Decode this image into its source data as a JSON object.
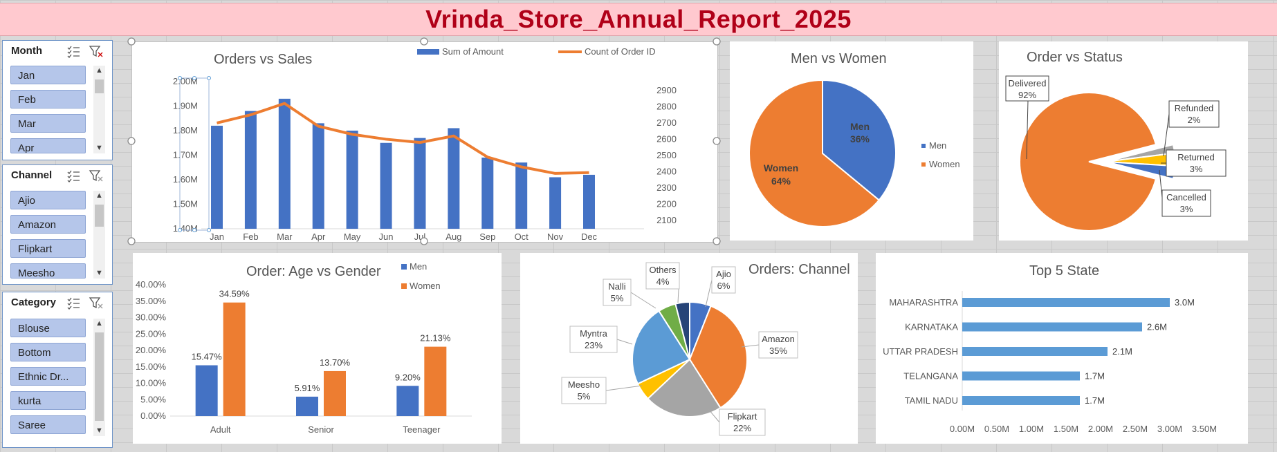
{
  "report_title": "Vrinda_Store_Annual_Report_2025",
  "colors": {
    "men": "#4472c4",
    "women": "#ed7d31",
    "bar": "#5b9bd5",
    "title": "#b00018"
  },
  "slicers": {
    "month": {
      "title": "Month",
      "items": [
        "Jan",
        "Feb",
        "Mar",
        "Apr"
      ]
    },
    "channel": {
      "title": "Channel",
      "items": [
        "Ajio",
        "Amazon",
        "Flipkart",
        "Meesho"
      ]
    },
    "category": {
      "title": "Category",
      "items": [
        "Blouse",
        "Bottom",
        "Ethnic Dr...",
        "kurta",
        "Saree"
      ]
    }
  },
  "chart_data": [
    {
      "type": "bar+line",
      "title": "Orders vs Sales",
      "categories": [
        "Jan",
        "Feb",
        "Mar",
        "Apr",
        "May",
        "Jun",
        "Jul",
        "Aug",
        "Sep",
        "Oct",
        "Nov",
        "Dec"
      ],
      "series": [
        {
          "name": "Sum of Amount",
          "type": "bar",
          "values": [
            1.82,
            1.88,
            1.93,
            1.83,
            1.8,
            1.75,
            1.77,
            1.81,
            1.69,
            1.67,
            1.61,
            1.62
          ]
        },
        {
          "name": "Count of Order ID",
          "type": "line",
          "values": [
            2700,
            2750,
            2820,
            2680,
            2630,
            2600,
            2580,
            2620,
            2490,
            2430,
            2390,
            2395
          ]
        }
      ],
      "y_ticks": [
        "1.40M",
        "1.50M",
        "1.60M",
        "1.70M",
        "1.80M",
        "1.90M",
        "2.00M"
      ],
      "y2_ticks": [
        "2100",
        "2200",
        "2300",
        "2400",
        "2500",
        "2600",
        "2700",
        "2800",
        "2900"
      ],
      "ylim": [
        1.4,
        2.0
      ],
      "y2lim": [
        2050,
        2950
      ]
    },
    {
      "type": "pie",
      "title": "Men vs Women",
      "labels": [
        "Men",
        "Women"
      ],
      "values": [
        36,
        64
      ],
      "data_labels": [
        "36%",
        "64%"
      ],
      "legend": [
        "Men",
        "Women"
      ]
    },
    {
      "type": "pie",
      "title": "Order vs Status",
      "labels": [
        "Delivered",
        "Refunded",
        "Returned",
        "Cancelled"
      ],
      "values": [
        92,
        2,
        3,
        3
      ],
      "data_labels": [
        "92%",
        "2%",
        "3%",
        "3%"
      ]
    },
    {
      "type": "bar",
      "title": "Order: Age vs Gender",
      "categories": [
        "Adult",
        "Senior",
        "Teenager"
      ],
      "series": [
        {
          "name": "Men",
          "values": [
            15.47,
            5.91,
            9.2
          ]
        },
        {
          "name": "Women",
          "values": [
            34.59,
            13.7,
            21.13
          ]
        }
      ],
      "data_labels": [
        [
          "15.47%",
          "5.91%",
          "9.20%"
        ],
        [
          "34.59%",
          "13.70%",
          "21.13%"
        ]
      ],
      "y_ticks": [
        "0.00%",
        "5.00%",
        "10.00%",
        "15.00%",
        "20.00%",
        "25.00%",
        "30.00%",
        "35.00%",
        "40.00%"
      ],
      "ylim": [
        0,
        40
      ]
    },
    {
      "type": "pie",
      "title": "Orders: Channel",
      "labels": [
        "Ajio",
        "Amazon",
        "Flipkart",
        "Meesho",
        "Myntra",
        "Nalli",
        "Others"
      ],
      "values": [
        6,
        35,
        22,
        5,
        23,
        5,
        4
      ],
      "data_labels": [
        "6%",
        "35%",
        "22%",
        "5%",
        "23%",
        "5%",
        "4%"
      ]
    },
    {
      "type": "bar",
      "orientation": "horizontal",
      "title": "Top 5 State",
      "categories": [
        "MAHARASHTRA",
        "KARNATAKA",
        "UTTAR PRADESH",
        "TELANGANA",
        "TAMIL NADU"
      ],
      "values": [
        3.0,
        2.6,
        2.1,
        1.7,
        1.7
      ],
      "data_labels": [
        "3.0M",
        "2.6M",
        "2.1M",
        "1.7M",
        "1.7M"
      ],
      "x_ticks": [
        "0.00M",
        "0.50M",
        "1.00M",
        "1.50M",
        "2.00M",
        "2.50M",
        "3.00M",
        "3.50M"
      ],
      "xlim": [
        0,
        3.5
      ]
    }
  ]
}
